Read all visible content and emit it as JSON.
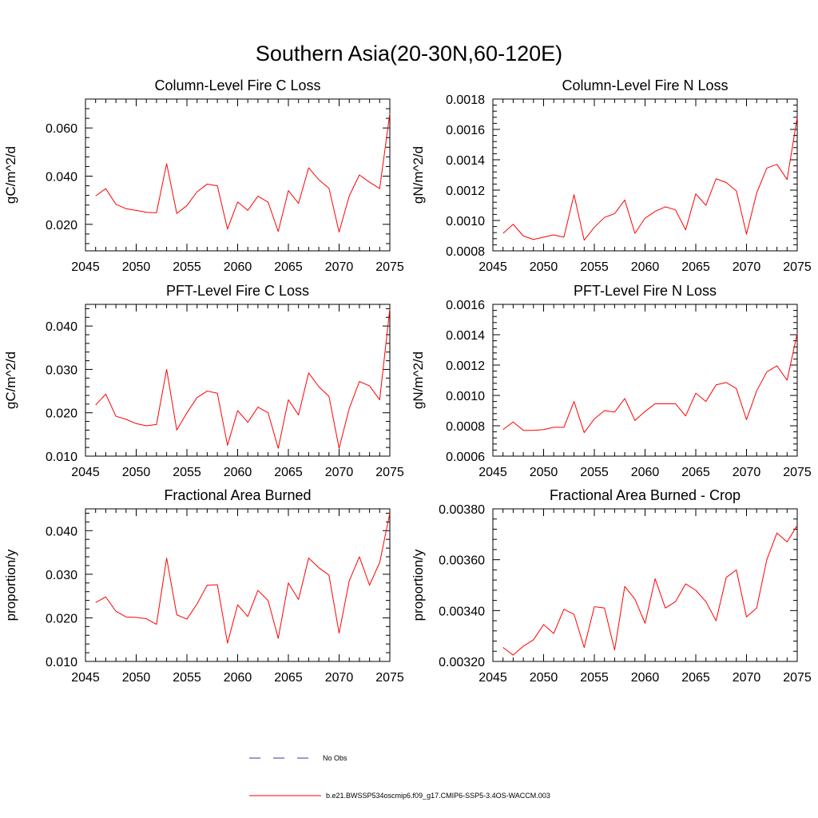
{
  "figure_title": "Southern Asia(20-30N,60-120E)",
  "colors": {
    "model": "#ff0000",
    "obs": "#3a3aa0",
    "axis": "#000000"
  },
  "legend": {
    "obs_label": "No Obs",
    "model_label": "b.e21.BWSSP534oscmip6.f09_g17.CMIP6-SSP5-3.4OS-WACCM.003"
  },
  "chart_data": [
    {
      "type": "line",
      "title": "Column-Level Fire C Loss",
      "ylabel": "gC/m^2/d",
      "xlim": [
        2045,
        2075
      ],
      "ylim": [
        0.009,
        0.072
      ],
      "xticks": [
        "2045",
        "2050",
        "2055",
        "2060",
        "2065",
        "2070",
        "2075"
      ],
      "yticks": [
        0.02,
        0.04,
        0.06
      ],
      "ytick_labels": [
        "0.020",
        "0.040",
        "0.060"
      ],
      "x": [
        2046,
        2047,
        2048,
        2049,
        2050,
        2051,
        2052,
        2053,
        2054,
        2055,
        2056,
        2057,
        2058,
        2059,
        2060,
        2061,
        2062,
        2063,
        2064,
        2065,
        2066,
        2067,
        2068,
        2069,
        2070,
        2071,
        2072,
        2073,
        2074,
        2075
      ],
      "series": [
        {
          "values": [
            0.0318,
            0.0348,
            0.0283,
            0.0265,
            0.0258,
            0.025,
            0.0248,
            0.0452,
            0.0245,
            0.0278,
            0.0335,
            0.0367,
            0.036,
            0.018,
            0.0293,
            0.0258,
            0.0317,
            0.0292,
            0.017,
            0.034,
            0.0287,
            0.0435,
            0.0385,
            0.035,
            0.0168,
            0.0318,
            0.0405,
            0.0375,
            0.0348,
            0.066
          ]
        }
      ]
    },
    {
      "type": "line",
      "title": "Column-Level Fire N Loss",
      "ylabel": "gN/m^2/d",
      "xlim": [
        2045,
        2075
      ],
      "ylim": [
        0.0008,
        0.0018
      ],
      "xticks": [
        "2045",
        "2050",
        "2055",
        "2060",
        "2065",
        "2070",
        "2075"
      ],
      "yticks": [
        0.0008,
        0.001,
        0.0012,
        0.0014,
        0.0016,
        0.0018
      ],
      "ytick_labels": [
        "0.0008",
        "0.0010",
        "0.0012",
        "0.0014",
        "0.0016",
        "0.0018"
      ],
      "x": [
        2046,
        2047,
        2048,
        2049,
        2050,
        2051,
        2052,
        2053,
        2054,
        2055,
        2056,
        2057,
        2058,
        2059,
        2060,
        2061,
        2062,
        2063,
        2064,
        2065,
        2066,
        2067,
        2068,
        2069,
        2070,
        2071,
        2072,
        2073,
        2074,
        2075
      ],
      "series": [
        {
          "values": [
            0.000915,
            0.000975,
            0.000898,
            0.000875,
            0.00089,
            0.000905,
            0.00089,
            0.00117,
            0.00087,
            0.000955,
            0.00102,
            0.001045,
            0.001135,
            0.000915,
            0.001015,
            0.00106,
            0.00109,
            0.00107,
            0.000938,
            0.001175,
            0.0011,
            0.001275,
            0.00125,
            0.001195,
            0.00091,
            0.00118,
            0.001345,
            0.00137,
            0.00127,
            0.00168
          ]
        }
      ]
    },
    {
      "type": "line",
      "title": "PFT-Level Fire C Loss",
      "ylabel": "gC/m^2/d",
      "xlim": [
        2045,
        2075
      ],
      "ylim": [
        0.01,
        0.045
      ],
      "xticks": [
        "2045",
        "2050",
        "2055",
        "2060",
        "2065",
        "2070",
        "2075"
      ],
      "yticks": [
        0.01,
        0.02,
        0.03,
        0.04
      ],
      "ytick_labels": [
        "0.010",
        "0.020",
        "0.030",
        "0.040"
      ],
      "x": [
        2046,
        2047,
        2048,
        2049,
        2050,
        2051,
        2052,
        2053,
        2054,
        2055,
        2056,
        2057,
        2058,
        2059,
        2060,
        2061,
        2062,
        2063,
        2064,
        2065,
        2066,
        2067,
        2068,
        2069,
        2070,
        2071,
        2072,
        2073,
        2074,
        2075
      ],
      "series": [
        {
          "values": [
            0.0218,
            0.0243,
            0.0192,
            0.0185,
            0.0175,
            0.017,
            0.0173,
            0.03,
            0.016,
            0.02,
            0.0235,
            0.025,
            0.0245,
            0.0125,
            0.0205,
            0.0178,
            0.0213,
            0.02,
            0.0118,
            0.023,
            0.0195,
            0.0292,
            0.026,
            0.0238,
            0.0118,
            0.021,
            0.0272,
            0.0262,
            0.023,
            0.044
          ]
        }
      ]
    },
    {
      "type": "line",
      "title": "PFT-Level Fire N Loss",
      "ylabel": "gN/m^2/d",
      "xlim": [
        2045,
        2075
      ],
      "ylim": [
        0.0006,
        0.0016
      ],
      "xticks": [
        "2045",
        "2050",
        "2055",
        "2060",
        "2065",
        "2070",
        "2075"
      ],
      "yticks": [
        0.0006,
        0.0008,
        0.001,
        0.0012,
        0.0014,
        0.0016
      ],
      "ytick_labels": [
        "0.0006",
        "0.0008",
        "0.0010",
        "0.0012",
        "0.0014",
        "0.0016"
      ],
      "x": [
        2046,
        2047,
        2048,
        2049,
        2050,
        2051,
        2052,
        2053,
        2054,
        2055,
        2056,
        2057,
        2058,
        2059,
        2060,
        2061,
        2062,
        2063,
        2064,
        2065,
        2066,
        2067,
        2068,
        2069,
        2070,
        2071,
        2072,
        2073,
        2074,
        2075
      ],
      "series": [
        {
          "values": [
            0.000775,
            0.000825,
            0.00077,
            0.00077,
            0.000775,
            0.00079,
            0.00079,
            0.00096,
            0.000755,
            0.000845,
            0.0009,
            0.00089,
            0.00098,
            0.000835,
            0.000895,
            0.000945,
            0.000945,
            0.000945,
            0.000865,
            0.001015,
            0.00096,
            0.00107,
            0.001085,
            0.001045,
            0.00084,
            0.00103,
            0.001155,
            0.001195,
            0.0011,
            0.00141
          ]
        }
      ]
    },
    {
      "type": "line",
      "title": "Fractional Area Burned",
      "ylabel": "proportion/y",
      "xlim": [
        2045,
        2075
      ],
      "ylim": [
        0.01,
        0.045
      ],
      "xticks": [
        "2045",
        "2050",
        "2055",
        "2060",
        "2065",
        "2070",
        "2075"
      ],
      "yticks": [
        0.01,
        0.02,
        0.03,
        0.04
      ],
      "ytick_labels": [
        "0.010",
        "0.020",
        "0.030",
        "0.040"
      ],
      "x": [
        2046,
        2047,
        2048,
        2049,
        2050,
        2051,
        2052,
        2053,
        2054,
        2055,
        2056,
        2057,
        2058,
        2059,
        2060,
        2061,
        2062,
        2063,
        2064,
        2065,
        2066,
        2067,
        2068,
        2069,
        2070,
        2071,
        2072,
        2073,
        2074,
        2075
      ],
      "series": [
        {
          "values": [
            0.0235,
            0.0248,
            0.0215,
            0.0202,
            0.0201,
            0.0198,
            0.0185,
            0.0337,
            0.0207,
            0.0197,
            0.0232,
            0.0275,
            0.0276,
            0.0142,
            0.023,
            0.0203,
            0.0263,
            0.024,
            0.0153,
            0.028,
            0.0242,
            0.0337,
            0.0315,
            0.0298,
            0.0165,
            0.0285,
            0.034,
            0.0275,
            0.0327,
            0.044
          ]
        }
      ]
    },
    {
      "type": "line",
      "title": "Fractional Area Burned - Crop",
      "ylabel": "proportion/y",
      "xlim": [
        2045,
        2075
      ],
      "ylim": [
        0.0032,
        0.0038
      ],
      "xticks": [
        "2045",
        "2050",
        "2055",
        "2060",
        "2065",
        "2070",
        "2075"
      ],
      "yticks": [
        0.0032,
        0.0034,
        0.0036,
        0.0038
      ],
      "ytick_labels": [
        "0.00320",
        "0.00340",
        "0.00360",
        "0.00380"
      ],
      "x": [
        2046,
        2047,
        2048,
        2049,
        2050,
        2051,
        2052,
        2053,
        2054,
        2055,
        2056,
        2057,
        2058,
        2059,
        2060,
        2061,
        2062,
        2063,
        2064,
        2065,
        2066,
        2067,
        2068,
        2069,
        2070,
        2071,
        2072,
        2073,
        2074,
        2075
      ],
      "series": [
        {
          "values": [
            0.003255,
            0.003225,
            0.00326,
            0.003285,
            0.003345,
            0.00331,
            0.003405,
            0.003385,
            0.003255,
            0.003415,
            0.00341,
            0.003245,
            0.003495,
            0.003445,
            0.00335,
            0.003525,
            0.00341,
            0.003435,
            0.003505,
            0.00348,
            0.003435,
            0.00336,
            0.00353,
            0.00356,
            0.003375,
            0.00341,
            0.0036,
            0.003705,
            0.00367,
            0.003735
          ]
        }
      ]
    }
  ]
}
